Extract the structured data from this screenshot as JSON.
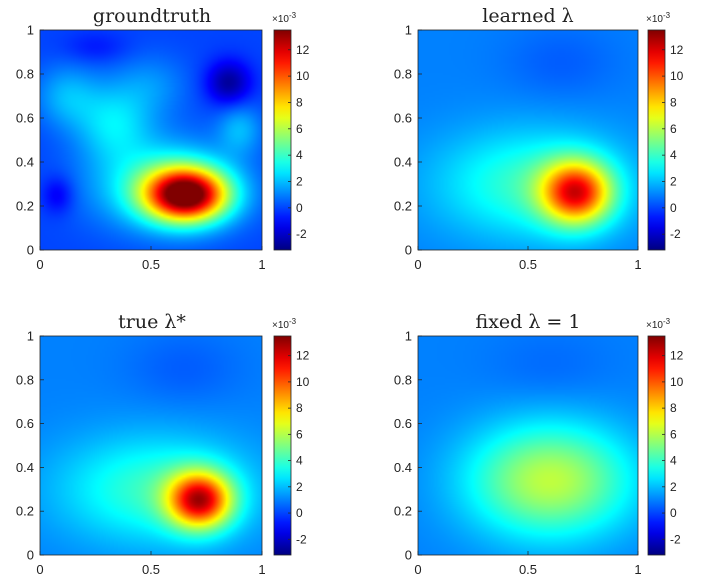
{
  "chart_data": [
    {
      "type": "heatmap",
      "title": "groundtruth",
      "xlabel": "",
      "ylabel": "",
      "xlim": [
        0,
        1
      ],
      "ylim": [
        0,
        1
      ],
      "x_ticks": [
        "0",
        "0.5",
        "1"
      ],
      "y_ticks": [
        "0",
        "0.2",
        "0.4",
        "0.6",
        "0.8",
        "1"
      ],
      "colorbar": {
        "ticks": [
          "-2",
          "0",
          "2",
          "4",
          "6",
          "8",
          "10",
          "12"
        ],
        "scale_label": "×10",
        "scale_exponent": "-3",
        "range": [
          -3.2,
          13.5
        ]
      },
      "colormap": "jet",
      "background_value": 0.0,
      "blobs": [
        {
          "x": 0.66,
          "y": 0.25,
          "sx": 0.13,
          "sy": 0.085,
          "a": 13.0
        },
        {
          "x": 0.55,
          "y": 0.3,
          "sx": 0.22,
          "sy": 0.14,
          "a": 3.5
        },
        {
          "x": 0.33,
          "y": 0.58,
          "sx": 0.12,
          "sy": 0.12,
          "a": 2.5
        },
        {
          "x": 0.12,
          "y": 0.7,
          "sx": 0.1,
          "sy": 0.1,
          "a": 1.8
        },
        {
          "x": 0.5,
          "y": 0.75,
          "sx": 0.12,
          "sy": 0.1,
          "a": 1.2
        },
        {
          "x": 0.08,
          "y": 0.25,
          "sx": 0.05,
          "sy": 0.06,
          "a": -1.5
        },
        {
          "x": 0.85,
          "y": 0.76,
          "sx": 0.07,
          "sy": 0.07,
          "a": -2.8
        },
        {
          "x": 0.9,
          "y": 0.55,
          "sx": 0.07,
          "sy": 0.08,
          "a": 1.8
        },
        {
          "x": 0.25,
          "y": 0.92,
          "sx": 0.1,
          "sy": 0.05,
          "a": -0.8
        }
      ]
    },
    {
      "type": "heatmap",
      "title": "learned λ",
      "xlabel": "",
      "ylabel": "",
      "xlim": [
        0,
        1
      ],
      "ylim": [
        0,
        1
      ],
      "x_ticks": [
        "0",
        "0.5",
        "1"
      ],
      "y_ticks": [
        "0",
        "0.2",
        "0.4",
        "0.6",
        "0.8",
        "1"
      ],
      "colorbar": {
        "ticks": [
          "-2",
          "0",
          "2",
          "4",
          "6",
          "8",
          "10",
          "12"
        ],
        "scale_label": "×10",
        "scale_exponent": "-3",
        "range": [
          -3.2,
          13.5
        ]
      },
      "colormap": "jet",
      "background_value": 1.0,
      "blobs": [
        {
          "x": 0.72,
          "y": 0.26,
          "sx": 0.11,
          "sy": 0.1,
          "a": 9.0
        },
        {
          "x": 0.52,
          "y": 0.3,
          "sx": 0.3,
          "sy": 0.17,
          "a": 3.0
        },
        {
          "x": 0.65,
          "y": 0.85,
          "sx": 0.18,
          "sy": 0.12,
          "a": -0.6
        }
      ]
    },
    {
      "type": "heatmap",
      "title": "true λ*",
      "xlabel": "",
      "ylabel": "",
      "xlim": [
        0,
        1
      ],
      "ylim": [
        0,
        1
      ],
      "x_ticks": [
        "0",
        "0.5",
        "1"
      ],
      "y_ticks": [
        "0",
        "0.2",
        "0.4",
        "0.6",
        "0.8",
        "1"
      ],
      "colorbar": {
        "ticks": [
          "-2",
          "0",
          "2",
          "4",
          "6",
          "8",
          "10",
          "12"
        ],
        "scale_label": "×10",
        "scale_exponent": "-3",
        "range": [
          -3.2,
          13.5
        ]
      },
      "colormap": "jet",
      "background_value": 1.0,
      "blobs": [
        {
          "x": 0.72,
          "y": 0.25,
          "sx": 0.1,
          "sy": 0.09,
          "a": 9.8
        },
        {
          "x": 0.52,
          "y": 0.3,
          "sx": 0.3,
          "sy": 0.17,
          "a": 3.0
        },
        {
          "x": 0.65,
          "y": 0.85,
          "sx": 0.18,
          "sy": 0.12,
          "a": -0.6
        }
      ]
    },
    {
      "type": "heatmap",
      "title": "fixed λ = 1",
      "xlabel": "",
      "ylabel": "",
      "xlim": [
        0,
        1
      ],
      "ylim": [
        0,
        1
      ],
      "x_ticks": [
        "0",
        "0.5",
        "1"
      ],
      "y_ticks": [
        "0",
        "0.2",
        "0.4",
        "0.6",
        "0.8",
        "1"
      ],
      "colorbar": {
        "ticks": [
          "-2",
          "0",
          "2",
          "4",
          "6",
          "8",
          "10",
          "12"
        ],
        "scale_label": "×10",
        "scale_exponent": "-3",
        "range": [
          -3.2,
          13.5
        ]
      },
      "colormap": "jet",
      "background_value": 1.0,
      "blobs": [
        {
          "x": 0.6,
          "y": 0.34,
          "sx": 0.26,
          "sy": 0.18,
          "a": 5.2
        },
        {
          "x": 0.6,
          "y": 0.85,
          "sx": 0.2,
          "sy": 0.12,
          "a": -0.4
        }
      ]
    }
  ]
}
